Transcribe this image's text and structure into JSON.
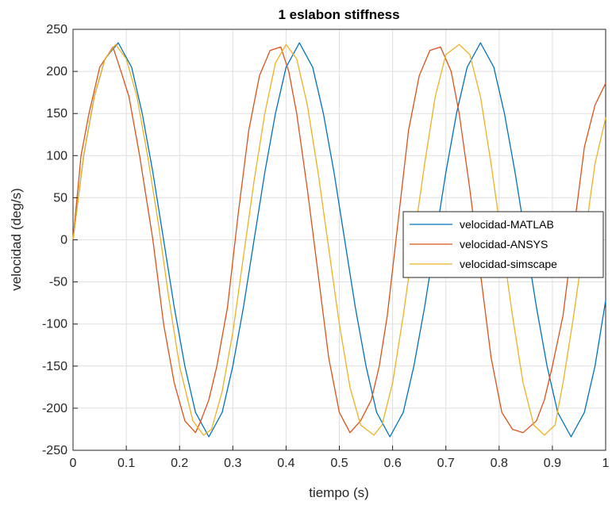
{
  "chart_data": {
    "type": "line",
    "title": "1 eslabon stiffness",
    "xlabel": "tiempo (s)",
    "ylabel": "velocidad (deg/s)",
    "xlim": [
      0,
      1
    ],
    "ylim": [
      -250,
      250
    ],
    "xticks": [
      0,
      0.1,
      0.2,
      0.3,
      0.4,
      0.5,
      0.6,
      0.7,
      0.8,
      0.9,
      1
    ],
    "xtick_labels": [
      "0",
      "0.1",
      "0.2",
      "0.3",
      "0.4",
      "0.5",
      "0.6",
      "0.7",
      "0.8",
      "0.9",
      "1"
    ],
    "yticks": [
      -250,
      -200,
      -150,
      -100,
      -50,
      0,
      50,
      100,
      150,
      200,
      250
    ],
    "ytick_labels": [
      "-250",
      "-200",
      "-150",
      "-100",
      "-50",
      "0",
      "50",
      "100",
      "150",
      "200",
      "250"
    ],
    "grid": true,
    "legend_position": "right",
    "series": [
      {
        "name": "velocidad-MATLAB",
        "color": "#0072BD",
        "x": [
          0,
          0.02,
          0.04,
          0.06,
          0.085,
          0.11,
          0.13,
          0.15,
          0.17,
          0.19,
          0.21,
          0.23,
          0.255,
          0.28,
          0.3,
          0.32,
          0.34,
          0.36,
          0.38,
          0.4,
          0.425,
          0.45,
          0.47,
          0.49,
          0.51,
          0.53,
          0.55,
          0.57,
          0.595,
          0.62,
          0.64,
          0.66,
          0.68,
          0.7,
          0.72,
          0.74,
          0.765,
          0.79,
          0.81,
          0.83,
          0.85,
          0.87,
          0.89,
          0.91,
          0.935,
          0.96,
          0.98,
          1.0
        ],
        "y": [
          0,
          100,
          170,
          215,
          234,
          205,
          150,
          80,
          0,
          -80,
          -150,
          -205,
          -234,
          -205,
          -150,
          -80,
          0,
          80,
          150,
          205,
          234,
          205,
          150,
          80,
          0,
          -80,
          -150,
          -205,
          -234,
          -205,
          -150,
          -80,
          0,
          80,
          150,
          205,
          234,
          205,
          150,
          80,
          0,
          -80,
          -150,
          -205,
          -234,
          -205,
          -150,
          -72
        ]
      },
      {
        "name": "velocidad-ANSYS",
        "color": "#D95319",
        "x": [
          0,
          0.015,
          0.03,
          0.05,
          0.075,
          0.09,
          0.105,
          0.125,
          0.15,
          0.17,
          0.19,
          0.21,
          0.23,
          0.24,
          0.255,
          0.27,
          0.29,
          0.31,
          0.33,
          0.35,
          0.37,
          0.39,
          0.405,
          0.42,
          0.44,
          0.46,
          0.48,
          0.5,
          0.52,
          0.54,
          0.56,
          0.575,
          0.59,
          0.61,
          0.63,
          0.65,
          0.67,
          0.69,
          0.71,
          0.725,
          0.745,
          0.765,
          0.785,
          0.805,
          0.825,
          0.845,
          0.87,
          0.885,
          0.9,
          0.92,
          0.94,
          0.96,
          0.98,
          1.0
        ],
        "y": [
          0,
          100,
          150,
          205,
          229,
          200,
          170,
          100,
          0,
          -100,
          -170,
          -215,
          -229,
          -215,
          -190,
          -150,
          -80,
          30,
          130,
          195,
          225,
          229,
          200,
          150,
          60,
          -40,
          -140,
          -205,
          -229,
          -215,
          -190,
          -150,
          -90,
          20,
          130,
          195,
          225,
          229,
          200,
          150,
          60,
          -40,
          -140,
          -205,
          -225,
          -229,
          -215,
          -190,
          -150,
          -90,
          10,
          110,
          160,
          186
        ]
      },
      {
        "name": "velocidad-simscape",
        "color": "#EDB120",
        "x": [
          0,
          0.02,
          0.04,
          0.06,
          0.08,
          0.1,
          0.12,
          0.14,
          0.16,
          0.18,
          0.2,
          0.225,
          0.245,
          0.26,
          0.28,
          0.3,
          0.32,
          0.34,
          0.36,
          0.38,
          0.4,
          0.42,
          0.44,
          0.46,
          0.48,
          0.5,
          0.52,
          0.54,
          0.565,
          0.58,
          0.6,
          0.62,
          0.64,
          0.66,
          0.68,
          0.7,
          0.725,
          0.745,
          0.765,
          0.785,
          0.805,
          0.825,
          0.845,
          0.865,
          0.885,
          0.905,
          0.92,
          0.94,
          0.96,
          0.98,
          1.0
        ],
        "y": [
          0,
          100,
          170,
          215,
          232,
          215,
          170,
          100,
          20,
          -70,
          -150,
          -215,
          -232,
          -225,
          -180,
          -110,
          -20,
          70,
          150,
          210,
          232,
          215,
          160,
          80,
          -10,
          -100,
          -175,
          -220,
          -232,
          -220,
          -170,
          -90,
          0,
          90,
          170,
          220,
          232,
          220,
          170,
          90,
          0,
          -90,
          -170,
          -220,
          -232,
          -220,
          -170,
          -90,
          0,
          90,
          145
        ]
      }
    ]
  }
}
